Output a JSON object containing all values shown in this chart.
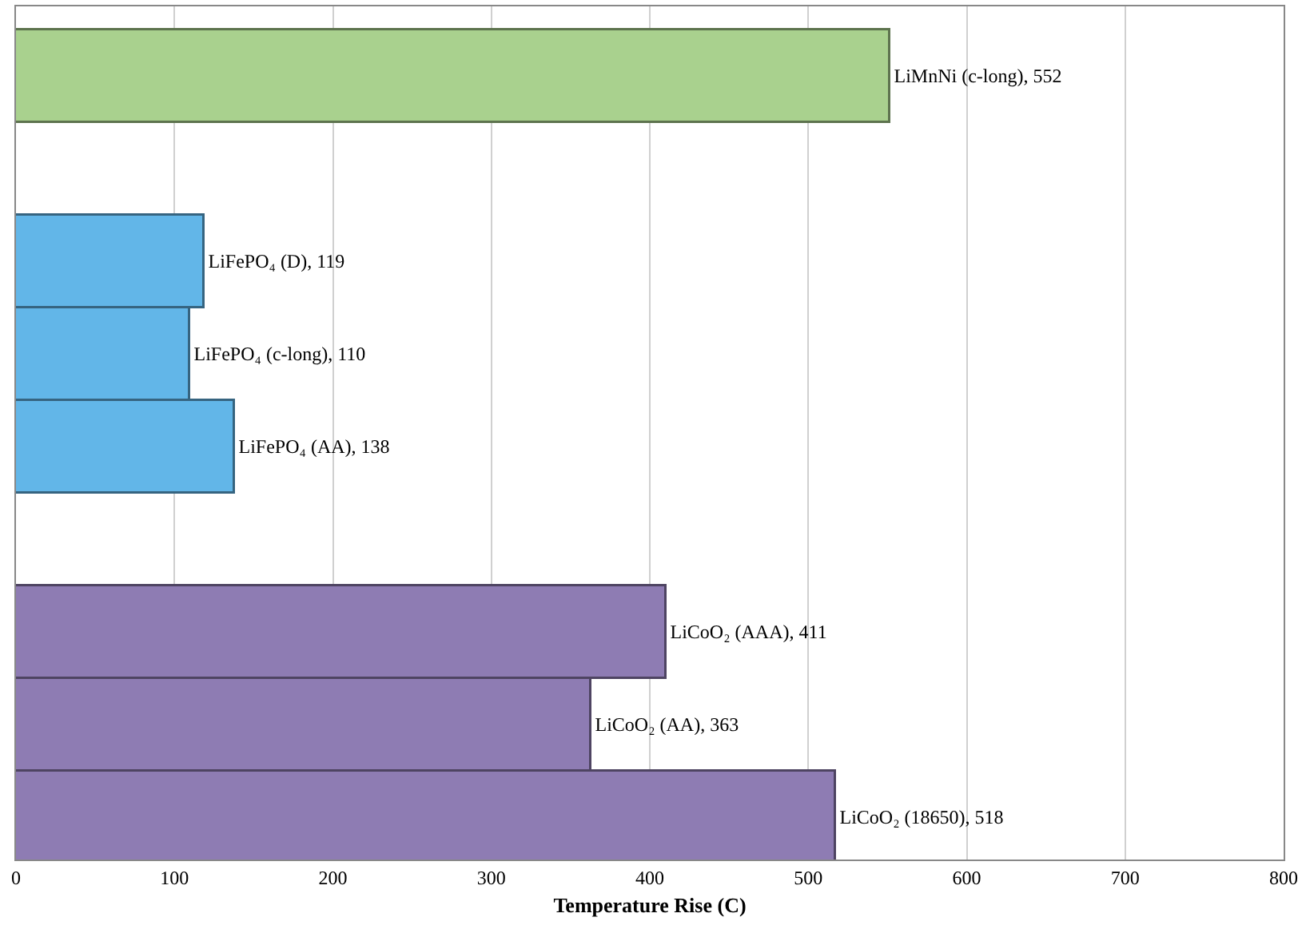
{
  "chart_data": {
    "type": "bar",
    "orientation": "horizontal",
    "categories": [
      null,
      null,
      null,
      null,
      null,
      null,
      null,
      null,
      null
    ],
    "values": [
      552,
      null,
      119,
      110,
      138,
      null,
      411,
      363,
      518
    ],
    "colors": [
      "#a9d18e",
      null,
      "#62b6e8",
      "#62b6e8",
      "#62b6e8",
      null,
      "#8e7cb3",
      "#8e7cb3",
      "#8e7cb3"
    ],
    "value_labels": [
      "LiMnNi (c-long), 552",
      null,
      "LiFePO₄ (D), 119",
      "LiFePO₄ (c-long), 110",
      "LiFePO₄ (AA), 138",
      null,
      "LiCoO₂ (AAA), 411",
      "LiCoO₂ (AA), 363",
      "LiCoO₂ (18650), 518"
    ],
    "xlabel": "Temperature Rise (C)",
    "xlim": [
      0,
      800
    ],
    "xticks": [
      0,
      100,
      200,
      300,
      400,
      500,
      600,
      700,
      800
    ],
    "grid": "x"
  }
}
